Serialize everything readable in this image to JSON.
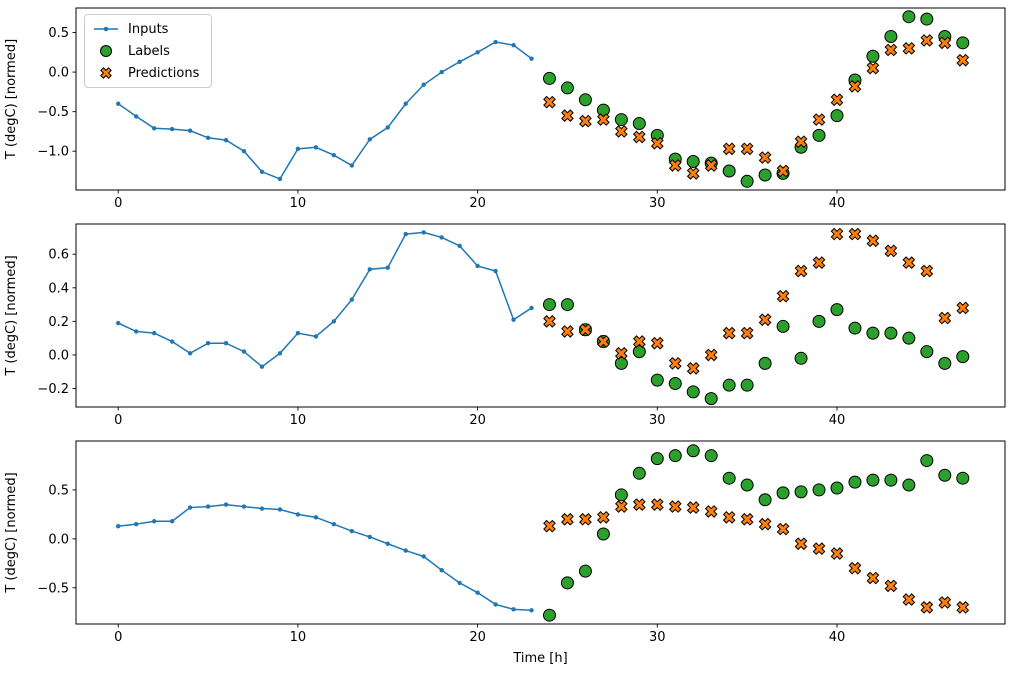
{
  "figure": {
    "xlabel": "Time [h]",
    "ylabel": "T (degC) [normed]",
    "background": "#ffffff"
  },
  "colors": {
    "inputs": "#1f77b4",
    "labels": "#2ca02c",
    "predictions": "#ff7f0e",
    "marker_edge": "#000000",
    "axis": "#000000",
    "legend_border": "#cccccc"
  },
  "legend": {
    "position": "upper left",
    "items": [
      {
        "label": "Inputs",
        "series": "inputs",
        "marker": "line-dot"
      },
      {
        "label": "Labels",
        "series": "labels",
        "marker": "filled-circle"
      },
      {
        "label": "Predictions",
        "series": "predictions",
        "marker": "filled-x"
      }
    ]
  },
  "chart_data": [
    {
      "type": "line+scatter",
      "title": "",
      "xlabel": "",
      "ylabel": "T (degC) [normed]",
      "grid": false,
      "xlim": [
        -2.35,
        49.35
      ],
      "ylim": [
        -1.49,
        0.81
      ],
      "xticks": [
        0,
        10,
        20,
        30,
        40
      ],
      "yticks": [
        0.5,
        0.0,
        -0.5,
        -1.0
      ],
      "series": [
        {
          "name": "Inputs",
          "mode": "line+markers",
          "marker": "dot",
          "color": "#1f77b4",
          "x": [
            0,
            1,
            2,
            3,
            4,
            5,
            6,
            7,
            8,
            9,
            10,
            11,
            12,
            13,
            14,
            15,
            16,
            17,
            18,
            19,
            20,
            21,
            22,
            23
          ],
          "y": [
            -0.4,
            -0.56,
            -0.71,
            -0.72,
            -0.74,
            -0.83,
            -0.86,
            -1.0,
            -1.26,
            -1.35,
            -0.97,
            -0.95,
            -1.05,
            -1.18,
            -0.85,
            -0.7,
            -0.4,
            -0.16,
            0.0,
            0.13,
            0.25,
            0.38,
            0.34,
            0.17
          ]
        },
        {
          "name": "Labels",
          "mode": "markers",
          "marker": "circle",
          "color": "#2ca02c",
          "x": [
            24,
            25,
            26,
            27,
            28,
            29,
            30,
            31,
            32,
            33,
            34,
            35,
            36,
            37,
            38,
            39,
            40,
            41,
            42,
            43,
            44,
            45,
            46,
            47
          ],
          "y": [
            -0.08,
            -0.2,
            -0.35,
            -0.48,
            -0.6,
            -0.65,
            -0.8,
            -1.1,
            -1.13,
            -1.15,
            -1.25,
            -1.38,
            -1.3,
            -1.28,
            -0.95,
            -0.8,
            -0.55,
            -0.1,
            0.2,
            0.45,
            0.7,
            0.67,
            0.45,
            0.37
          ]
        },
        {
          "name": "Predictions",
          "mode": "markers",
          "marker": "X",
          "color": "#ff7f0e",
          "x": [
            24,
            25,
            26,
            27,
            28,
            29,
            30,
            31,
            32,
            33,
            34,
            35,
            36,
            37,
            38,
            39,
            40,
            41,
            42,
            43,
            44,
            45,
            46,
            47
          ],
          "y": [
            -0.38,
            -0.55,
            -0.62,
            -0.6,
            -0.75,
            -0.82,
            -0.9,
            -1.18,
            -1.28,
            -1.18,
            -0.97,
            -0.97,
            -1.08,
            -1.25,
            -0.88,
            -0.6,
            -0.35,
            -0.18,
            0.05,
            0.28,
            0.3,
            0.4,
            0.37,
            0.15
          ]
        }
      ]
    },
    {
      "type": "line+scatter",
      "title": "",
      "xlabel": "",
      "ylabel": "T (degC) [normed]",
      "grid": false,
      "xlim": [
        -2.35,
        49.35
      ],
      "ylim": [
        -0.31,
        0.78
      ],
      "xticks": [
        0,
        10,
        20,
        30,
        40
      ],
      "yticks": [
        0.6,
        0.4,
        0.2,
        0.0,
        -0.2
      ],
      "series": [
        {
          "name": "Inputs",
          "mode": "line+markers",
          "marker": "dot",
          "color": "#1f77b4",
          "x": [
            0,
            1,
            2,
            3,
            4,
            5,
            6,
            7,
            8,
            9,
            10,
            11,
            12,
            13,
            14,
            15,
            16,
            17,
            18,
            19,
            20,
            21,
            22,
            23
          ],
          "y": [
            0.19,
            0.14,
            0.13,
            0.08,
            0.01,
            0.07,
            0.07,
            0.02,
            -0.07,
            0.01,
            0.13,
            0.11,
            0.2,
            0.33,
            0.51,
            0.52,
            0.72,
            0.73,
            0.7,
            0.65,
            0.53,
            0.5,
            0.21,
            0.28
          ]
        },
        {
          "name": "Labels",
          "mode": "markers",
          "marker": "circle",
          "color": "#2ca02c",
          "x": [
            24,
            25,
            26,
            27,
            28,
            29,
            30,
            31,
            32,
            33,
            34,
            35,
            36,
            37,
            38,
            39,
            40,
            41,
            42,
            43,
            44,
            45,
            46,
            47
          ],
          "y": [
            0.3,
            0.3,
            0.15,
            0.08,
            -0.05,
            0.02,
            -0.15,
            -0.17,
            -0.22,
            -0.26,
            -0.18,
            -0.18,
            -0.05,
            0.17,
            -0.02,
            0.2,
            0.27,
            0.16,
            0.13,
            0.13,
            0.1,
            0.02,
            -0.05,
            -0.01
          ]
        },
        {
          "name": "Predictions",
          "mode": "markers",
          "marker": "X",
          "color": "#ff7f0e",
          "x": [
            24,
            25,
            26,
            27,
            28,
            29,
            30,
            31,
            32,
            33,
            34,
            35,
            36,
            37,
            38,
            39,
            40,
            41,
            42,
            43,
            44,
            45,
            46,
            47
          ],
          "y": [
            0.2,
            0.14,
            0.15,
            0.08,
            0.01,
            0.08,
            0.07,
            -0.05,
            -0.08,
            0.0,
            0.13,
            0.13,
            0.21,
            0.35,
            0.5,
            0.55,
            0.72,
            0.72,
            0.68,
            0.62,
            0.55,
            0.5,
            0.22,
            0.28
          ]
        }
      ]
    },
    {
      "type": "line+scatter",
      "title": "",
      "xlabel": "Time [h]",
      "ylabel": "T (degC) [normed]",
      "grid": false,
      "xlim": [
        -2.35,
        49.35
      ],
      "ylim": [
        -0.87,
        1.0
      ],
      "xticks": [
        0,
        10,
        20,
        30,
        40
      ],
      "yticks": [
        0.5,
        0.0,
        -0.5
      ],
      "series": [
        {
          "name": "Inputs",
          "mode": "line+markers",
          "marker": "dot",
          "color": "#1f77b4",
          "x": [
            0,
            1,
            2,
            3,
            4,
            5,
            6,
            7,
            8,
            9,
            10,
            11,
            12,
            13,
            14,
            15,
            16,
            17,
            18,
            19,
            20,
            21,
            22,
            23
          ],
          "y": [
            0.13,
            0.15,
            0.18,
            0.18,
            0.32,
            0.33,
            0.35,
            0.33,
            0.31,
            0.3,
            0.25,
            0.22,
            0.15,
            0.08,
            0.02,
            -0.05,
            -0.12,
            -0.18,
            -0.32,
            -0.45,
            -0.55,
            -0.67,
            -0.72,
            -0.73
          ]
        },
        {
          "name": "Labels",
          "mode": "markers",
          "marker": "circle",
          "color": "#2ca02c",
          "x": [
            24,
            25,
            26,
            27,
            28,
            29,
            30,
            31,
            32,
            33,
            34,
            35,
            36,
            37,
            38,
            39,
            40,
            41,
            42,
            43,
            44,
            45,
            46,
            47
          ],
          "y": [
            -0.78,
            -0.45,
            -0.33,
            0.05,
            0.45,
            0.67,
            0.82,
            0.85,
            0.9,
            0.85,
            0.62,
            0.55,
            0.4,
            0.47,
            0.48,
            0.5,
            0.52,
            0.58,
            0.6,
            0.6,
            0.55,
            0.8,
            0.65,
            0.62
          ]
        },
        {
          "name": "Predictions",
          "mode": "markers",
          "marker": "X",
          "color": "#ff7f0e",
          "x": [
            24,
            25,
            26,
            27,
            28,
            29,
            30,
            31,
            32,
            33,
            34,
            35,
            36,
            37,
            38,
            39,
            40,
            41,
            42,
            43,
            44,
            45,
            46,
            47
          ],
          "y": [
            0.13,
            0.2,
            0.2,
            0.22,
            0.33,
            0.35,
            0.35,
            0.33,
            0.32,
            0.28,
            0.22,
            0.2,
            0.15,
            0.1,
            -0.05,
            -0.1,
            -0.15,
            -0.3,
            -0.4,
            -0.48,
            -0.62,
            -0.7,
            -0.65,
            -0.7
          ]
        }
      ]
    }
  ]
}
